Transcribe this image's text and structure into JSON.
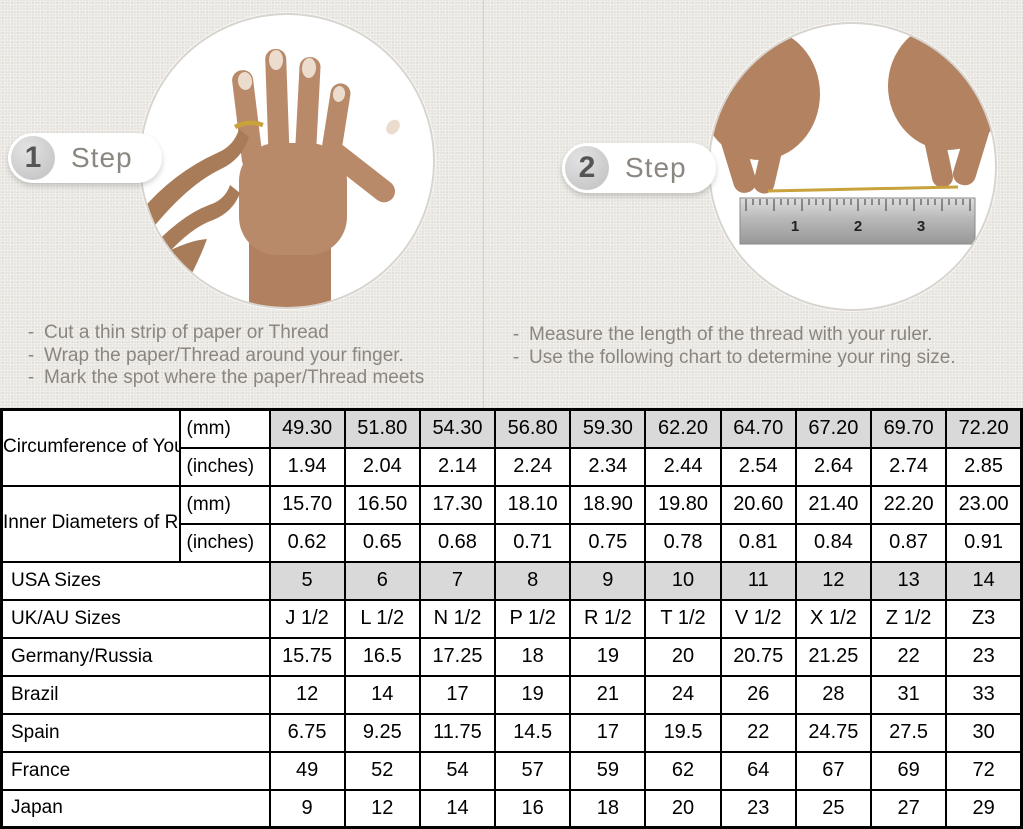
{
  "bullet": "-",
  "colors": {
    "page_background": "#e9e6e1",
    "shaded_cell": "#d9d9d9",
    "table_border": "#000000",
    "instruction_text": "#8a867f",
    "gold_thread": "#c9a23b"
  },
  "steps": [
    {
      "number": "1",
      "label": "Step",
      "photo": "hand-with-thread-around-finger",
      "instructions": [
        "Cut a thin strip of paper or Thread",
        "Wrap the paper/Thread around your finger.",
        "Mark the spot where the paper/Thread meets"
      ]
    },
    {
      "number": "2",
      "label": "Step",
      "photo": "hands-measuring-thread-with-ruler",
      "ruler_numbers": [
        "1",
        "2",
        "3"
      ],
      "instructions": [
        "Measure the length of the thread with your ruler.",
        "Use the following chart to determine your ring size."
      ]
    }
  ],
  "table": {
    "row_groups": [
      {
        "label": "Circumference of Your Finger",
        "rows": [
          {
            "unit": "(mm)",
            "shaded": true,
            "values": [
              "49.30",
              "51.80",
              "54.30",
              "56.80",
              "59.30",
              "62.20",
              "64.70",
              "67.20",
              "69.70",
              "72.20"
            ]
          },
          {
            "unit": "(inches)",
            "shaded": false,
            "values": [
              "1.94",
              "2.04",
              "2.14",
              "2.24",
              "2.34",
              "2.44",
              "2.54",
              "2.64",
              "2.74",
              "2.85"
            ]
          }
        ]
      },
      {
        "label": "Inner Diameters of Rings",
        "rows": [
          {
            "unit": "(mm)",
            "shaded": false,
            "values": [
              "15.70",
              "16.50",
              "17.30",
              "18.10",
              "18.90",
              "19.80",
              "20.60",
              "21.40",
              "22.20",
              "23.00"
            ]
          },
          {
            "unit": "(inches)",
            "shaded": false,
            "values": [
              "0.62",
              "0.65",
              "0.68",
              "0.71",
              "0.75",
              "0.78",
              "0.81",
              "0.84",
              "0.87",
              "0.91"
            ]
          }
        ]
      }
    ],
    "size_rows": [
      {
        "label": "USA Sizes",
        "shaded": true,
        "values": [
          "5",
          "6",
          "7",
          "8",
          "9",
          "10",
          "11",
          "12",
          "13",
          "14"
        ]
      },
      {
        "label": "UK/AU Sizes",
        "shaded": false,
        "values": [
          "J 1/2",
          "L 1/2",
          "N 1/2",
          "P 1/2",
          "R 1/2",
          "T 1/2",
          "V 1/2",
          "X 1/2",
          "Z 1/2",
          "Z3"
        ]
      },
      {
        "label": "Germany/Russia",
        "shaded": false,
        "values": [
          "15.75",
          "16.5",
          "17.25",
          "18",
          "19",
          "20",
          "20.75",
          "21.25",
          "22",
          "23"
        ]
      },
      {
        "label": "Brazil",
        "shaded": false,
        "values": [
          "12",
          "14",
          "17",
          "19",
          "21",
          "24",
          "26",
          "28",
          "31",
          "33"
        ]
      },
      {
        "label": "Spain",
        "shaded": false,
        "values": [
          "6.75",
          "9.25",
          "11.75",
          "14.5",
          "17",
          "19.5",
          "22",
          "24.75",
          "27.5",
          "30"
        ]
      },
      {
        "label": "France",
        "shaded": false,
        "values": [
          "49",
          "52",
          "54",
          "57",
          "59",
          "62",
          "64",
          "67",
          "69",
          "72"
        ]
      },
      {
        "label": "Japan",
        "shaded": false,
        "values": [
          "9",
          "12",
          "14",
          "16",
          "18",
          "20",
          "23",
          "25",
          "27",
          "29"
        ]
      }
    ]
  }
}
